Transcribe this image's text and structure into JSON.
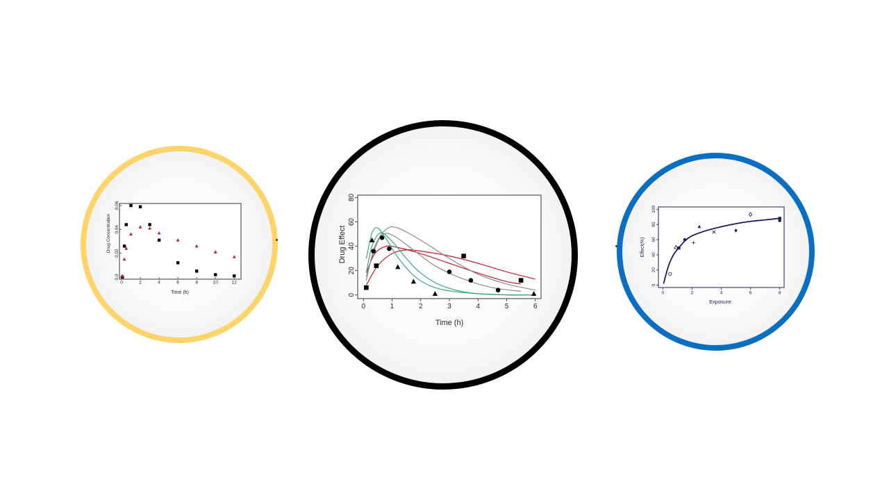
{
  "colors": {
    "left_ring": "#fdd46a",
    "middle_ring": "#000000",
    "right_ring": "#0a6fc2",
    "red": "#c0202a",
    "green": "#3aaa7a",
    "gray": "#8a8a8a",
    "navy": "#1c1c5a"
  },
  "chart_data": [
    {
      "type": "scatter",
      "xlabel": "Time (h)",
      "ylabel": "Drug Concentration",
      "xlim": [
        0,
        12.5
      ],
      "ylim": [
        0,
        0.06
      ],
      "xticks": [
        "0",
        "2",
        "4",
        "6",
        "8",
        "10",
        "12"
      ],
      "yticks": [
        "0.0",
        "0.02",
        "0.04",
        "0.06"
      ],
      "series": [
        {
          "marker": "square",
          "color": "#000000",
          "x": [
            0.1,
            0.3,
            0.5,
            1,
            2,
            3,
            4,
            6,
            8,
            10,
            12
          ],
          "y": [
            0.0,
            0.026,
            0.044,
            0.06,
            0.059,
            0.044,
            0.031,
            0.012,
            0.005,
            0.002,
            0.001
          ]
        },
        {
          "marker": "triangle",
          "color": "#c0202a",
          "x": [
            0.1,
            0.3,
            0.5,
            1,
            2,
            3,
            4,
            6,
            8,
            10,
            12
          ],
          "y": [
            0.001,
            0.015,
            0.024,
            0.036,
            0.042,
            0.041,
            0.037,
            0.031,
            0.026,
            0.021,
            0.017
          ]
        }
      ]
    },
    {
      "type": "line",
      "xlabel": "Time (h)",
      "ylabel": "Drug Effect",
      "xlim": [
        -0.2,
        6.2
      ],
      "ylim": [
        -3,
        82
      ],
      "xticks": [
        "0",
        "1",
        "2",
        "3",
        "4",
        "5",
        "6"
      ],
      "yticks": [
        "0",
        "20",
        "40",
        "60",
        "80"
      ],
      "curves": [
        {
          "color": "#c0202a",
          "x": [
            0.1,
            0.5,
            1,
            1.5,
            2,
            3,
            4,
            5,
            6
          ],
          "y": [
            8,
            24,
            34,
            37,
            36,
            32,
            26,
            19,
            13
          ]
        },
        {
          "color": "#c0202a",
          "x": [
            0.1,
            0.4,
            0.8,
            1.2,
            2,
            3,
            4,
            5,
            5.5
          ],
          "y": [
            18,
            34,
            40,
            39,
            34,
            26,
            18,
            11,
            9
          ]
        },
        {
          "color": "#3aaa7a",
          "x": [
            0.1,
            0.3,
            0.5,
            0.8,
            1.2,
            1.8,
            2.5,
            3.5,
            5,
            6
          ],
          "y": [
            30,
            51,
            55,
            46,
            31,
            15,
            6,
            2,
            0,
            0
          ]
        },
        {
          "color": "#3aaa7a",
          "x": [
            0.1,
            0.3,
            0.6,
            1,
            1.5,
            2,
            2.8,
            4,
            6
          ],
          "y": [
            18,
            40,
            51,
            44,
            30,
            18,
            7,
            1,
            0
          ]
        },
        {
          "color": "#8a8a8a",
          "x": [
            0.1,
            0.4,
            0.8,
            1.2,
            2,
            3,
            4,
            5,
            6
          ],
          "y": [
            12,
            40,
            54,
            55,
            45,
            30,
            17,
            9,
            4
          ]
        },
        {
          "color": "#8a8a8a",
          "x": [
            0.1,
            0.4,
            0.7,
            1.1,
            1.8,
            2.5,
            3.5,
            4.5,
            5.5
          ],
          "y": [
            15,
            38,
            50,
            48,
            36,
            24,
            13,
            6,
            3
          ]
        }
      ],
      "series": [
        {
          "marker": "triangle",
          "color": "#000000",
          "x": [
            0.3,
            1.2,
            1.75,
            2.5,
            5.95
          ],
          "y": [
            45,
            23,
            11,
            1,
            1
          ]
        },
        {
          "marker": "circle",
          "color": "#000000",
          "x": [
            0.35,
            0.65,
            0.9,
            3,
            3.75,
            4.7
          ],
          "y": [
            36,
            47,
            38,
            19,
            12,
            4
          ]
        },
        {
          "marker": "square",
          "color": "#000000",
          "x": [
            0.1,
            0.45,
            3.5,
            5.5
          ],
          "y": [
            6,
            24,
            32,
            12
          ]
        }
      ]
    },
    {
      "type": "scatter",
      "xlabel": "Exposure",
      "ylabel": "Effect(%)",
      "xlim": [
        -0.3,
        8.3
      ],
      "ylim": [
        -3,
        103
      ],
      "xticks": [
        "0",
        "2",
        "4",
        "6",
        "8"
      ],
      "yticks": [
        "0",
        "20",
        "40",
        "60",
        "80",
        "100"
      ],
      "curve": {
        "color": "#1c1c5a",
        "x": [
          0.05,
          0.2,
          0.4,
          0.7,
          1,
          1.5,
          2,
          3,
          4,
          5,
          6,
          7,
          8
        ],
        "y": [
          2,
          13,
          26,
          39,
          47,
          58,
          65,
          72,
          77,
          81,
          84,
          86,
          88
        ]
      },
      "series": [
        {
          "marker": "open-circle",
          "x": [
            0.5
          ],
          "y": [
            15
          ]
        },
        {
          "marker": "open-triangle",
          "x": [
            0.9
          ],
          "y": [
            50
          ]
        },
        {
          "marker": "filled-square",
          "x": [
            1.1
          ],
          "y": [
            49
          ]
        },
        {
          "marker": "filled-circle",
          "x": [
            1.5
          ],
          "y": [
            60
          ]
        },
        {
          "marker": "plus",
          "x": [
            2.1
          ],
          "y": [
            56
          ]
        },
        {
          "marker": "filled-triangle",
          "x": [
            2.5
          ],
          "y": [
            77
          ]
        },
        {
          "marker": "cross",
          "x": [
            3.5
          ],
          "y": [
            70
          ]
        },
        {
          "marker": "filled-diamond",
          "x": [
            5
          ],
          "y": [
            72
          ]
        },
        {
          "marker": "open-diamond",
          "x": [
            6
          ],
          "y": [
            93
          ]
        },
        {
          "marker": "filled-circle",
          "x": [
            8
          ],
          "y": [
            85
          ]
        },
        {
          "marker": "filled-square",
          "x": [
            8
          ],
          "y": [
            88
          ]
        }
      ]
    }
  ]
}
